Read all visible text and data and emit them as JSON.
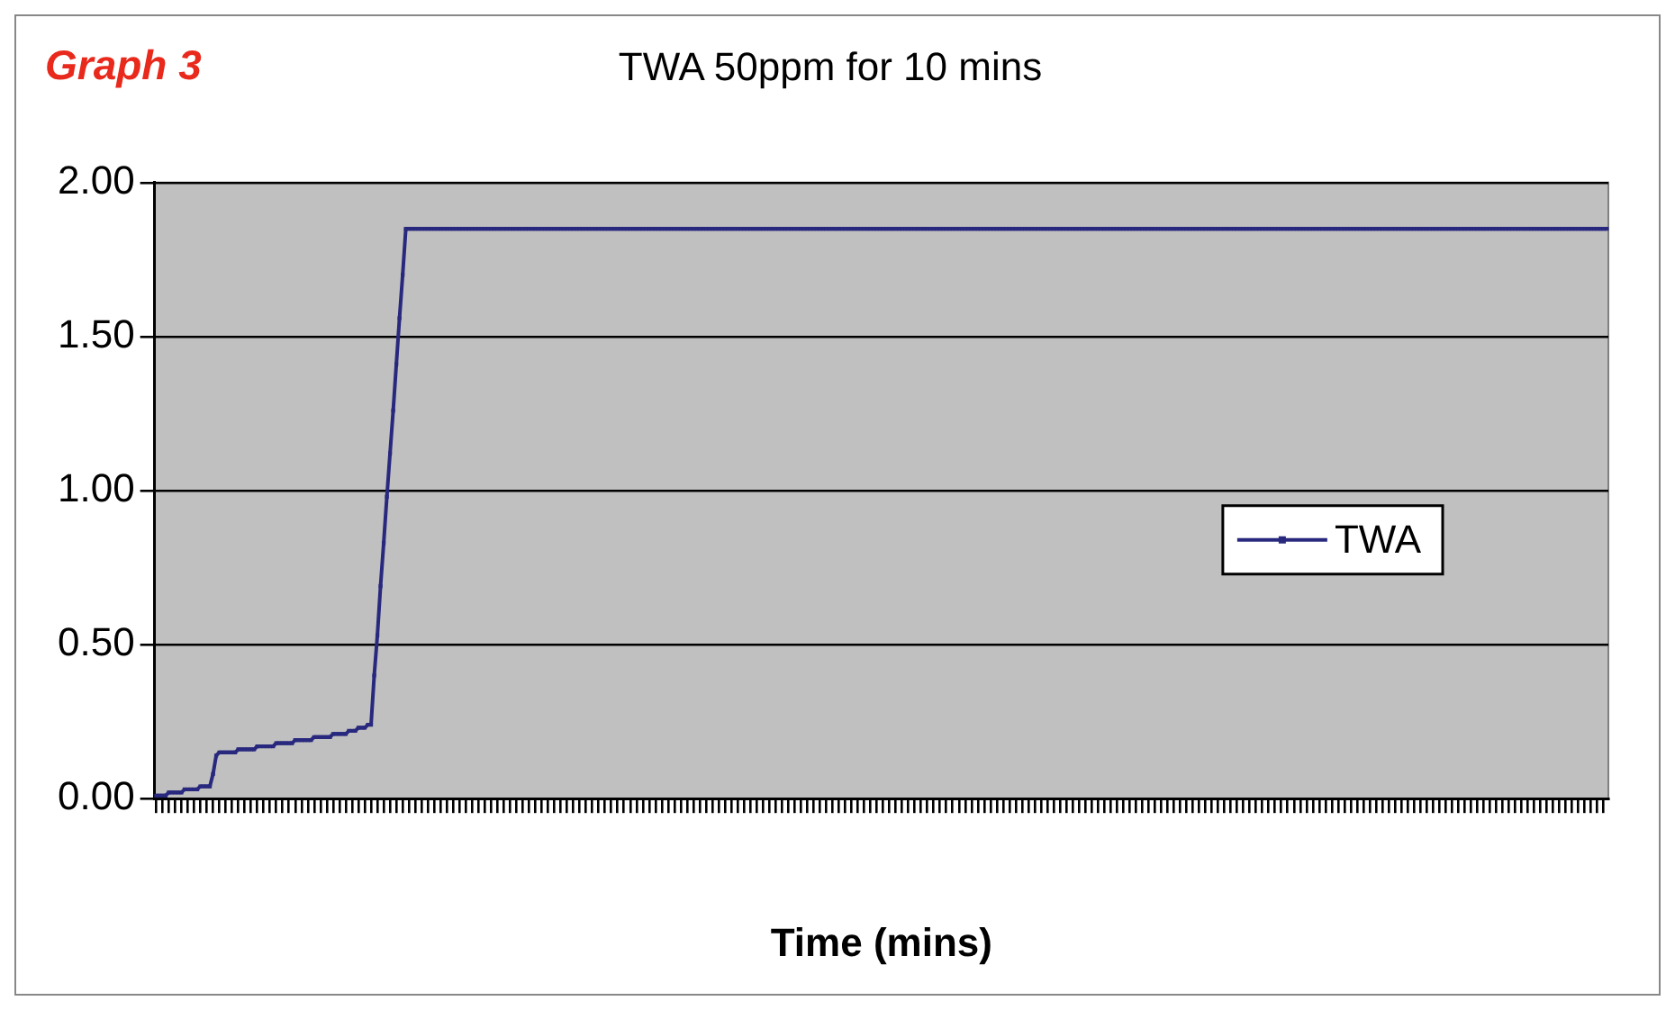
{
  "chart_data": {
    "type": "line",
    "title": "TWA 50ppm for 10 mins",
    "xlabel": "Time (mins)",
    "annotations": [
      "Graph 3"
    ],
    "tick_labels": "y",
    "grid": "y",
    "legend": "right",
    "marker": "square",
    "line_style": "solid",
    "ylim": [
      0,
      2
    ],
    "yticks": [
      {
        "value": 0,
        "label": "0.00"
      },
      {
        "value": 0.5,
        "label": "0.50"
      },
      {
        "value": 1,
        "label": "1.00"
      },
      {
        "value": 1.5,
        "label": "1.50"
      },
      {
        "value": 2,
        "label": "2.00"
      }
    ],
    "categories": [
      null,
      null,
      null,
      null,
      null,
      null,
      null,
      null,
      null,
      null,
      null,
      null,
      null,
      null,
      null,
      null,
      null,
      null,
      null,
      null,
      null,
      null,
      null,
      null,
      null,
      null,
      null,
      null,
      null,
      null,
      null,
      null,
      null,
      null,
      null,
      null,
      null,
      null,
      null,
      null,
      null,
      null,
      null,
      null,
      null,
      null,
      null,
      null,
      null,
      null,
      null,
      null,
      null,
      null,
      null,
      null,
      null,
      null,
      null,
      null,
      null,
      null,
      null,
      null,
      null,
      null,
      null,
      null,
      null,
      null,
      null,
      null,
      null,
      null,
      null,
      null,
      null,
      null,
      null,
      null,
      null,
      null,
      null,
      null,
      null,
      null,
      null,
      null,
      null,
      null,
      null,
      null,
      null,
      null,
      null,
      null,
      null,
      null,
      null,
      null,
      null,
      null,
      null,
      null,
      null,
      null,
      null,
      null,
      null,
      null,
      null,
      null,
      null,
      null,
      null,
      null,
      null,
      null,
      null,
      null,
      null,
      null,
      null,
      null,
      null,
      null,
      null,
      null,
      null,
      null,
      null,
      null,
      null,
      null,
      null,
      null,
      null,
      null,
      null,
      null,
      null,
      null,
      null,
      null,
      null,
      null,
      null,
      null,
      null,
      null,
      null,
      null,
      null,
      null,
      null,
      null,
      null,
      null,
      null,
      null,
      null,
      null,
      null,
      null,
      null,
      null,
      null,
      null,
      null,
      null,
      null,
      null,
      null,
      null,
      null,
      null,
      null,
      null,
      null,
      null,
      null,
      null,
      null,
      null,
      null,
      null,
      null,
      null,
      null,
      null,
      null,
      null,
      null,
      null,
      null,
      null,
      null,
      null,
      null,
      null,
      null,
      null,
      null,
      null,
      null,
      null,
      null,
      null,
      null,
      null,
      null,
      null,
      null,
      null,
      null,
      null,
      null,
      null,
      null,
      null,
      null,
      null,
      null,
      null,
      null,
      null,
      null,
      null,
      null,
      null,
      null,
      null,
      null,
      null,
      null,
      null,
      null,
      null,
      null,
      null,
      null,
      null,
      null,
      null,
      null,
      null,
      null,
      null,
      null,
      null,
      null,
      null,
      null,
      null,
      null,
      null,
      null,
      null,
      null,
      null,
      null,
      null,
      null,
      null,
      null,
      null,
      null,
      null,
      null,
      null,
      null,
      null,
      null,
      null,
      null,
      null,
      null,
      null,
      null,
      null,
      null,
      null,
      null,
      null,
      null,
      null,
      null,
      null,
      null,
      null,
      null,
      null,
      null,
      null,
      null,
      null,
      null,
      null,
      null,
      null,
      null,
      null,
      null,
      null,
      null,
      null,
      null,
      null,
      null,
      null,
      null,
      null,
      null,
      null,
      null,
      null,
      null,
      null,
      null,
      null,
      null,
      null,
      null,
      null,
      null,
      null,
      null,
      null,
      null,
      null,
      null,
      null,
      null,
      null,
      null,
      null,
      null,
      null,
      null,
      null,
      null,
      null,
      null,
      null,
      null,
      null,
      null,
      null,
      null,
      null,
      null,
      null,
      null,
      null,
      null,
      null,
      null,
      null,
      null,
      null,
      null,
      null,
      null,
      null,
      null,
      null,
      null,
      null,
      null,
      null,
      null,
      null,
      null,
      null,
      null,
      null,
      null,
      null,
      null,
      null,
      null,
      null,
      null,
      null,
      null,
      null,
      null,
      null,
      null,
      null,
      null,
      null,
      null,
      null,
      null,
      null,
      null,
      null,
      null,
      null,
      null,
      null,
      null,
      null,
      null,
      null,
      null,
      null,
      null,
      null,
      null,
      null,
      null,
      null,
      null,
      null,
      null,
      null,
      null,
      null,
      null,
      null,
      null,
      null,
      null,
      null,
      null,
      null,
      null,
      null,
      null,
      null,
      null,
      null,
      null,
      null,
      null,
      null,
      null,
      null,
      null,
      null,
      null,
      null,
      null,
      null,
      null,
      null,
      null,
      null,
      null,
      null,
      null,
      null,
      null,
      null,
      null,
      null,
      null,
      null
    ],
    "series": [
      {
        "name": "TWA",
        "color": "#28287e",
        "values": [
          0.01,
          0.01,
          0.01,
          0.01,
          0.02,
          0.02,
          0.02,
          0.02,
          0.02,
          0.03,
          0.03,
          0.03,
          0.03,
          0.03,
          0.04,
          0.04,
          0.04,
          0.04,
          0.08,
          0.14,
          0.15,
          0.15,
          0.15,
          0.15,
          0.15,
          0.15,
          0.16,
          0.16,
          0.16,
          0.16,
          0.16,
          0.16,
          0.17,
          0.17,
          0.17,
          0.17,
          0.17,
          0.17,
          0.18,
          0.18,
          0.18,
          0.18,
          0.18,
          0.18,
          0.19,
          0.19,
          0.19,
          0.19,
          0.19,
          0.19,
          0.2,
          0.2,
          0.2,
          0.2,
          0.2,
          0.2,
          0.21,
          0.21,
          0.21,
          0.21,
          0.21,
          0.22,
          0.22,
          0.22,
          0.23,
          0.23,
          0.23,
          0.24,
          0.24,
          0.4,
          0.53,
          0.69,
          0.83,
          0.98,
          1.12,
          1.26,
          1.41,
          1.56,
          1.7,
          1.85,
          1.85,
          1.85,
          1.85,
          1.85,
          1.85,
          1.85,
          1.85,
          1.85,
          1.85,
          1.85,
          1.85,
          1.85,
          1.85,
          1.85,
          1.85,
          1.85,
          1.85,
          1.85,
          1.85,
          1.85,
          1.85,
          1.85,
          1.85,
          1.85,
          1.85,
          1.85,
          1.85,
          1.85,
          1.85,
          1.85,
          1.85,
          1.85,
          1.85,
          1.85,
          1.85,
          1.85,
          1.85,
          1.85,
          1.85,
          1.85,
          1.85,
          1.85,
          1.85,
          1.85,
          1.85,
          1.85,
          1.85,
          1.85,
          1.85,
          1.85,
          1.85,
          1.85,
          1.85,
          1.85,
          1.85,
          1.85,
          1.85,
          1.85,
          1.85,
          1.85,
          1.85,
          1.85,
          1.85,
          1.85,
          1.85,
          1.85,
          1.85,
          1.85,
          1.85,
          1.85,
          1.85,
          1.85,
          1.85,
          1.85,
          1.85,
          1.85,
          1.85,
          1.85,
          1.85,
          1.85,
          1.85,
          1.85,
          1.85,
          1.85,
          1.85,
          1.85,
          1.85,
          1.85,
          1.85,
          1.85,
          1.85,
          1.85,
          1.85,
          1.85,
          1.85,
          1.85,
          1.85,
          1.85,
          1.85,
          1.85,
          1.85,
          1.85,
          1.85,
          1.85,
          1.85,
          1.85,
          1.85,
          1.85,
          1.85,
          1.85,
          1.85,
          1.85,
          1.85,
          1.85,
          1.85,
          1.85,
          1.85,
          1.85,
          1.85,
          1.85,
          1.85,
          1.85,
          1.85,
          1.85,
          1.85,
          1.85,
          1.85,
          1.85,
          1.85,
          1.85,
          1.85,
          1.85,
          1.85,
          1.85,
          1.85,
          1.85,
          1.85,
          1.85,
          1.85,
          1.85,
          1.85,
          1.85,
          1.85,
          1.85,
          1.85,
          1.85,
          1.85,
          1.85,
          1.85,
          1.85,
          1.85,
          1.85,
          1.85,
          1.85,
          1.85,
          1.85,
          1.85,
          1.85,
          1.85,
          1.85,
          1.85,
          1.85,
          1.85,
          1.85,
          1.85,
          1.85,
          1.85,
          1.85,
          1.85,
          1.85,
          1.85,
          1.85,
          1.85,
          1.85,
          1.85,
          1.85,
          1.85,
          1.85,
          1.85,
          1.85,
          1.85,
          1.85,
          1.85,
          1.85,
          1.85,
          1.85,
          1.85,
          1.85,
          1.85,
          1.85,
          1.85,
          1.85,
          1.85,
          1.85,
          1.85,
          1.85,
          1.85,
          1.85,
          1.85,
          1.85,
          1.85,
          1.85,
          1.85,
          1.85,
          1.85,
          1.85,
          1.85,
          1.85,
          1.85,
          1.85,
          1.85,
          1.85,
          1.85,
          1.85,
          1.85,
          1.85,
          1.85,
          1.85,
          1.85,
          1.85,
          1.85,
          1.85,
          1.85,
          1.85,
          1.85,
          1.85,
          1.85,
          1.85,
          1.85,
          1.85,
          1.85,
          1.85,
          1.85,
          1.85,
          1.85,
          1.85,
          1.85,
          1.85,
          1.85,
          1.85,
          1.85,
          1.85,
          1.85,
          1.85,
          1.85,
          1.85,
          1.85,
          1.85,
          1.85,
          1.85,
          1.85,
          1.85,
          1.85,
          1.85,
          1.85,
          1.85,
          1.85,
          1.85,
          1.85,
          1.85,
          1.85,
          1.85,
          1.85,
          1.85,
          1.85,
          1.85,
          1.85,
          1.85,
          1.85,
          1.85,
          1.85,
          1.85,
          1.85,
          1.85,
          1.85,
          1.85,
          1.85,
          1.85,
          1.85,
          1.85,
          1.85,
          1.85,
          1.85,
          1.85,
          1.85,
          1.85,
          1.85,
          1.85,
          1.85,
          1.85,
          1.85,
          1.85,
          1.85,
          1.85,
          1.85,
          1.85,
          1.85,
          1.85,
          1.85,
          1.85,
          1.85,
          1.85,
          1.85,
          1.85,
          1.85,
          1.85,
          1.85,
          1.85,
          1.85,
          1.85,
          1.85,
          1.85,
          1.85,
          1.85,
          1.85,
          1.85,
          1.85,
          1.85,
          1.85,
          1.85,
          1.85,
          1.85,
          1.85,
          1.85,
          1.85,
          1.85,
          1.85,
          1.85,
          1.85,
          1.85,
          1.85,
          1.85,
          1.85,
          1.85,
          1.85,
          1.85,
          1.85,
          1.85,
          1.85,
          1.85,
          1.85,
          1.85,
          1.85,
          1.85,
          1.85,
          1.85,
          1.85,
          1.85,
          1.85,
          1.85,
          1.85,
          1.85,
          1.85,
          1.85,
          1.85,
          1.85,
          1.85,
          1.85,
          1.85,
          1.85,
          1.85,
          1.85,
          1.85,
          1.85,
          1.85,
          1.85,
          1.85,
          1.85,
          1.85,
          1.85,
          1.85,
          1.85,
          1.85,
          1.85,
          1.85,
          1.85,
          1.85,
          1.85,
          1.85,
          1.85
        ]
      }
    ]
  }
}
